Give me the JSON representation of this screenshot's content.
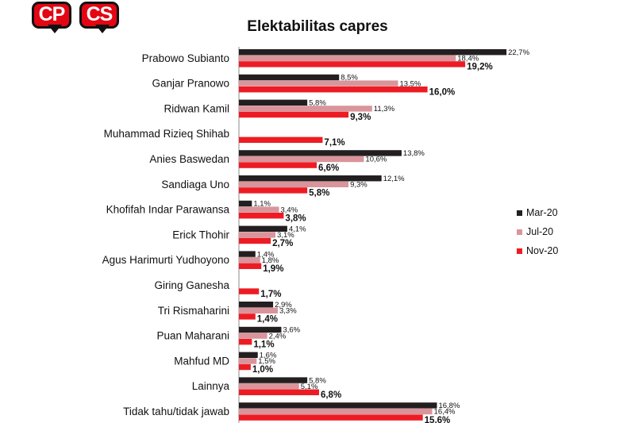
{
  "logo": {
    "left_text": "CP",
    "right_text": "CS"
  },
  "chart_data": {
    "type": "bar",
    "orientation": "horizontal",
    "title": "Elektabilitas capres",
    "categories": [
      "Prabowo Subianto",
      "Ganjar Pranowo",
      "Ridwan Kamil",
      "Muhammad Rizieq Shihab",
      "Anies Baswedan",
      "Sandiaga Uno",
      "Khofifah Indar Parawansa",
      "Erick Thohir",
      "Agus Harimurti Yudhoyono",
      "Giring Ganesha",
      "Tri Rismaharini",
      "Puan Maharani",
      "Mahfud MD",
      "Lainnya",
      "Tidak tahu/tidak jawab"
    ],
    "series": [
      {
        "name": "Mar-20",
        "color": "#231f20",
        "values": [
          22.7,
          8.5,
          5.8,
          null,
          13.8,
          12.1,
          1.1,
          4.1,
          1.4,
          null,
          2.9,
          3.6,
          1.6,
          5.8,
          16.8
        ],
        "labels": [
          "22,7%",
          "8,5%",
          "5,8%",
          "",
          "13,8%",
          "12,1%",
          "1,1%",
          "4,1%",
          "1,4%",
          "",
          "2,9%",
          "3,6%",
          "1,6%",
          "5,8%",
          "16,8%"
        ]
      },
      {
        "name": "Jul-20",
        "color": "#d9959b",
        "values": [
          18.4,
          13.5,
          11.3,
          null,
          10.6,
          9.3,
          3.4,
          3.1,
          1.8,
          null,
          3.3,
          2.4,
          1.5,
          5.1,
          16.4
        ],
        "labels": [
          "18,4%",
          "13,5%",
          "11,3%",
          "",
          "10,6%",
          "9,3%",
          "3,4%",
          "3,1%",
          "1,8%",
          "",
          "3,3%",
          "2,4%",
          "1,5%",
          "5,1%",
          "16,4%"
        ]
      },
      {
        "name": "Nov-20",
        "color": "#ed1c24",
        "values": [
          19.2,
          16.0,
          9.3,
          7.1,
          6.6,
          5.8,
          3.8,
          2.7,
          1.9,
          1.7,
          1.4,
          1.1,
          1.0,
          6.8,
          15.6
        ],
        "labels": [
          "19,2%",
          "16,0%",
          "9,3%",
          "7,1%",
          "6,6%",
          "5,8%",
          "3,8%",
          "2,7%",
          "1,9%",
          "1,7%",
          "1,4%",
          "1,1%",
          "1,0%",
          "6,8%",
          "15,6%"
        ]
      }
    ],
    "legend_position": "right",
    "xlim": [
      0,
      25
    ],
    "grid": false,
    "xlabel": "",
    "ylabel": ""
  }
}
